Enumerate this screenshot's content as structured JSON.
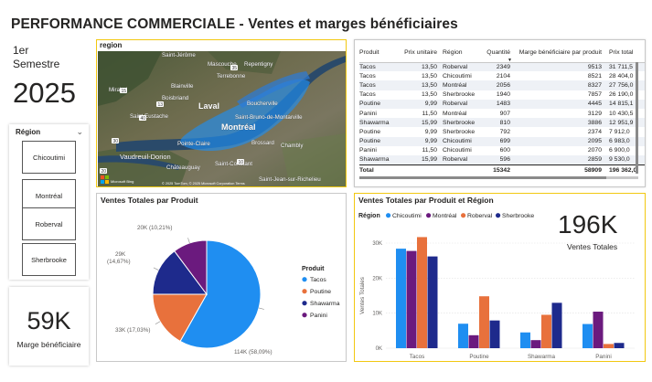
{
  "header": {
    "title": "PERFORMANCE COMMERCIALE - Ventes et marges bénéficiaires"
  },
  "semester": {
    "line1": "1er",
    "line2": "Semestre",
    "year": "2025"
  },
  "region_slicer": {
    "title": "Région",
    "chevron_icon": "chevron-down-icon",
    "options": [
      "Chicoutimi",
      "Montréal",
      "Roberval",
      "Sherbrooke"
    ]
  },
  "kpi_marge": {
    "value": "59K",
    "label": "Marge bénéficiaire"
  },
  "map": {
    "title": "region",
    "places": [
      "Saint-Jérôme",
      "Mascouche",
      "Repentigny",
      "Terrebonne",
      "Mirabel",
      "Blainville",
      "Boisbriand",
      "Laval",
      "Saint-Eustache",
      "Boucherville",
      "Saint-Bruno-de-Montarville",
      "Montréal",
      "Pointe-Claire",
      "Brossard",
      "Chambly",
      "Vaudreuil-Dorion",
      "Châteauguay",
      "Saint-Constant",
      "Saint-Jean-sur-Richelieu"
    ],
    "route_numbers": [
      "15",
      "40",
      "13",
      "30",
      "20",
      "35",
      "10"
    ],
    "attribution": "© 2025 TomTom, © 2025 Microsoft Corporation Terms",
    "logo": "Microsoft Bing"
  },
  "table": {
    "headers": [
      "Produit",
      "Prix unitaire",
      "Région",
      "Quantité",
      "Marge bénéficiaire par produit",
      "Prix total"
    ],
    "sort_icon": "sort-descending-icon",
    "rows": [
      [
        "Tacos",
        "13,50",
        "Roberval",
        "2349",
        "9513",
        "31 711,5"
      ],
      [
        "Tacos",
        "13,50",
        "Chicoutimi",
        "2104",
        "8521",
        "28 404,0"
      ],
      [
        "Tacos",
        "13,50",
        "Montréal",
        "2056",
        "8327",
        "27 756,0"
      ],
      [
        "Tacos",
        "13,50",
        "Sherbrooke",
        "1940",
        "7857",
        "26 190,0"
      ],
      [
        "Poutine",
        "9,99",
        "Roberval",
        "1483",
        "4445",
        "14 815,1"
      ],
      [
        "Panini",
        "11,50",
        "Montréal",
        "907",
        "3129",
        "10 430,5"
      ],
      [
        "Shawarma",
        "15,99",
        "Sherbrooke",
        "810",
        "3886",
        "12 951,9"
      ],
      [
        "Poutine",
        "9,99",
        "Sherbrooke",
        "792",
        "2374",
        "7 912,0"
      ],
      [
        "Poutine",
        "9,99",
        "Chicoutimi",
        "699",
        "2095",
        "6 983,0"
      ],
      [
        "Panini",
        "11,50",
        "Chicoutimi",
        "600",
        "2070",
        "6 900,0"
      ],
      [
        "Shawarma",
        "15,99",
        "Roberval",
        "596",
        "2859",
        "9 530,0"
      ]
    ],
    "total": [
      "Total",
      "",
      "",
      "15342",
      "58909",
      "196 362,0"
    ]
  },
  "pie": {
    "title": "Ventes Totales par Produit",
    "legend_title": "Produit",
    "colors": {
      "Tacos": "#1f8ef1",
      "Poutine": "#e8713c",
      "Shawarma": "#1e2a8c",
      "Panini": "#6b1a7e"
    }
  },
  "bars": {
    "title": "Ventes Totales par Produit et Région",
    "legend_title": "Région",
    "axis_title": "Ventes Totales",
    "colors": {
      "Chicoutimi": "#1f8ef1",
      "Montréal": "#6b1a7e",
      "Roberval": "#e8713c",
      "Sherbrooke": "#1e2a8c"
    },
    "kpi_value": "196K",
    "kpi_label": "Ventes Totales"
  },
  "chart_data": [
    {
      "type": "pie",
      "title": "Ventes Totales par Produit",
      "legend_title": "Produit",
      "slices": [
        {
          "name": "Tacos",
          "value": 114000,
          "label": "114K (58,09%)"
        },
        {
          "name": "Poutine",
          "value": 33000,
          "label": "33K (17,03%)"
        },
        {
          "name": "Shawarma",
          "value": 29000,
          "label": "29K (14,67%)"
        },
        {
          "name": "Panini",
          "value": 20000,
          "label": "20K (10,21%)"
        }
      ]
    },
    {
      "type": "bar",
      "title": "Ventes Totales par Produit et Région",
      "ylabel": "Ventes Totales",
      "categories": [
        "Tacos",
        "Poutine",
        "Shawarma",
        "Panini"
      ],
      "ylim": [
        0,
        30000
      ],
      "yticks": [
        "0K",
        "10K",
        "20K",
        "30K"
      ],
      "yticks_values": [
        0,
        10000,
        20000,
        30000
      ],
      "legend_title": "Région",
      "series": [
        {
          "name": "Chicoutimi",
          "values": [
            28404,
            6983,
            4500,
            6900
          ]
        },
        {
          "name": "Montréal",
          "values": [
            27756,
            3700,
            2300,
            10430
          ]
        },
        {
          "name": "Roberval",
          "values": [
            31712,
            14815,
            9530,
            1200
          ]
        },
        {
          "name": "Sherbrooke",
          "values": [
            26190,
            7912,
            12952,
            1500
          ]
        }
      ]
    }
  ]
}
